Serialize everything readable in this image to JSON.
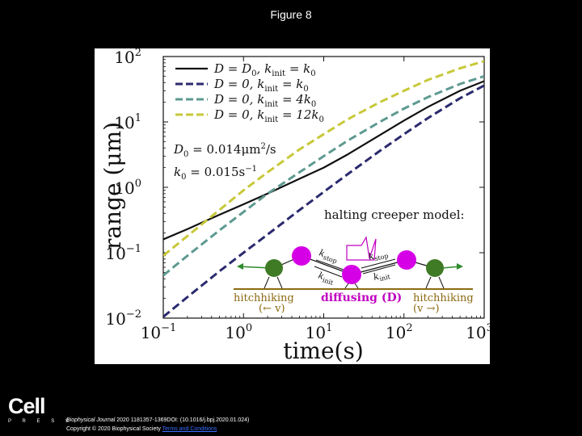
{
  "slide": {
    "title": "Figure 8",
    "logo_word": "Cell",
    "logo_sub": "P R E S S",
    "citation_journal": "Biophysical Journal",
    "citation_rest": " 2020 1181357-1369DOI: (10.1016/j.bpj.2020.01.024)",
    "copyright": "Copyright © 2020 Biophysical Society ",
    "terms_link": "Terms and Conditions"
  },
  "colors": {
    "background": "#000000",
    "panel": "#ffffff",
    "black_line": "#111111",
    "navy_line": "#2b2a6e",
    "teal_line": "#5e9a91",
    "yellow_line": "#c8c83a",
    "magenta_node": "#d600e6",
    "green_node": "#3f7a25",
    "green_arrow": "#2e8b2e",
    "track": "#8b6a12",
    "diffusing_text": "#c000c0"
  },
  "chart_data": {
    "type": "line",
    "x_scale": "log",
    "y_scale": "log",
    "xlim": [
      0.1,
      1000
    ],
    "ylim": [
      0.01,
      100
    ],
    "xlabel": "time(s)",
    "ylabel": "range (μm)",
    "xticks": [
      {
        "value": 0.1,
        "base": "10",
        "exp": "−1"
      },
      {
        "value": 1,
        "base": "10",
        "exp": "0"
      },
      {
        "value": 10,
        "base": "10",
        "exp": "1"
      },
      {
        "value": 100,
        "base": "10",
        "exp": "2"
      },
      {
        "value": 1000,
        "base": "10",
        "exp": "3"
      }
    ],
    "yticks": [
      {
        "value": 0.01,
        "base": "10",
        "exp": "−2"
      },
      {
        "value": 0.1,
        "base": "10",
        "exp": "−1"
      },
      {
        "value": 1,
        "base": "10",
        "exp": "0"
      },
      {
        "value": 10,
        "base": "10",
        "exp": "1"
      },
      {
        "value": 100,
        "base": "10",
        "exp": "2"
      }
    ],
    "series": [
      {
        "name": "D = D0, kinit = k0",
        "legend_pre": "D = D",
        "legend_sub1": "0",
        "legend_mid": ", k",
        "legend_sub2": "init",
        "legend_post": " = k",
        "legend_sub3": "0",
        "style": "solid",
        "color_key": "black_line",
        "x": [
          0.1,
          0.2,
          0.5,
          1,
          2,
          5,
          10,
          20,
          50,
          100,
          200,
          500,
          1000
        ],
        "y": [
          0.16,
          0.23,
          0.38,
          0.55,
          0.8,
          1.35,
          2.0,
          3.2,
          6.3,
          10.5,
          17,
          30,
          42
        ]
      },
      {
        "name": "D = 0, kinit = k0",
        "legend_pre": "D = 0, k",
        "legend_sub1": "",
        "legend_mid": "",
        "legend_sub2": "init",
        "legend_post": " = k",
        "legend_sub3": "0",
        "style": "dashed",
        "color_key": "navy_line",
        "x": [
          0.1,
          0.2,
          0.5,
          1,
          2,
          5,
          10,
          20,
          50,
          100,
          200,
          500,
          1000
        ],
        "y": [
          0.0105,
          0.021,
          0.052,
          0.1,
          0.19,
          0.45,
          0.85,
          1.6,
          3.6,
          6.5,
          11.5,
          23,
          36
        ]
      },
      {
        "name": "D = 0, kinit = 4k0",
        "legend_pre": "D = 0, k",
        "legend_sub1": "",
        "legend_mid": "",
        "legend_sub2": "init",
        "legend_post": " = 4k",
        "legend_sub3": "0",
        "style": "dashed",
        "color_key": "teal_line",
        "x": [
          0.1,
          0.2,
          0.5,
          1,
          2,
          5,
          10,
          20,
          50,
          100,
          200,
          500,
          1000
        ],
        "y": [
          0.045,
          0.09,
          0.22,
          0.42,
          0.8,
          1.7,
          3.0,
          5.2,
          10,
          16,
          24,
          38,
          50
        ]
      },
      {
        "name": "D = 0, kinit = 12k0",
        "legend_pre": "D = 0, k",
        "legend_sub1": "",
        "legend_mid": "",
        "legend_sub2": "init",
        "legend_post": " = 12k",
        "legend_sub3": "0",
        "style": "dashed",
        "color_key": "yellow_line",
        "x": [
          0.1,
          0.2,
          0.5,
          1,
          2,
          5,
          10,
          20,
          50,
          100,
          200,
          500,
          1000
        ],
        "y": [
          0.09,
          0.18,
          0.45,
          0.9,
          1.7,
          3.8,
          6.5,
          11,
          20,
          30,
          44,
          66,
          85
        ]
      }
    ],
    "annotations": {
      "d0_text": "D",
      "d0_sub": "0",
      "d0_value": " = 0.014μm",
      "d0_sup": "2",
      "d0_unit": "/s",
      "k0_text": "k",
      "k0_sub": "0",
      "k0_value": " = 0.015s",
      "k0_sup": "−1"
    },
    "inset": {
      "title": "halting creeper model:",
      "left_label": "hitchhiking",
      "left_sub": "(← v)",
      "center_label": "diffusing (D)",
      "right_label": "hitchhiking",
      "right_sub": "(v →)",
      "k_stop": "k",
      "k_stop_sub": "stop",
      "k_init": "k",
      "k_init_sub": "init"
    }
  }
}
